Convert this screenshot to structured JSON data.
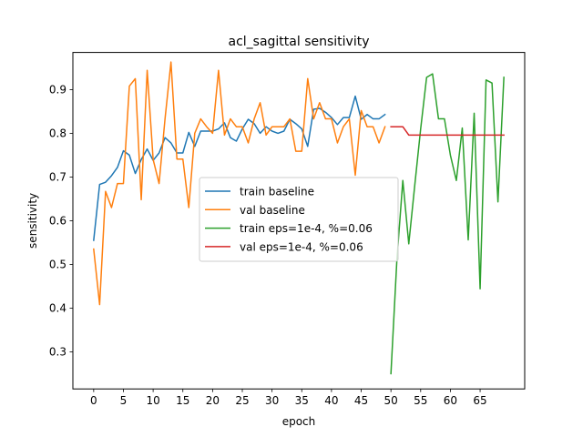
{
  "chart_data": {
    "type": "line",
    "title": "acl_sagittal sensitivity",
    "xlabel": "epoch",
    "ylabel": "sensitivity",
    "xlim": [
      -3.5,
      72.5
    ],
    "ylim": [
      0.215,
      0.985
    ],
    "xticks": [
      0,
      5,
      10,
      15,
      20,
      25,
      30,
      35,
      40,
      45,
      50,
      55,
      60,
      65
    ],
    "yticks": [
      0.3,
      0.4,
      0.5,
      0.6,
      0.7,
      0.8,
      0.9
    ],
    "ytick_labels": [
      "0.3",
      "0.4",
      "0.5",
      "0.6",
      "0.7",
      "0.8",
      "0.9"
    ],
    "grid": false,
    "legend_position": "center",
    "series": [
      {
        "name": "train baseline",
        "color": "#1f77b4",
        "x": [
          0,
          1,
          2,
          3,
          4,
          5,
          6,
          7,
          8,
          9,
          10,
          11,
          12,
          13,
          14,
          15,
          16,
          17,
          18,
          19,
          20,
          21,
          22,
          23,
          24,
          25,
          26,
          27,
          28,
          29,
          30,
          31,
          32,
          33,
          34,
          35,
          36,
          37,
          38,
          39,
          40,
          41,
          42,
          43,
          44,
          45,
          46,
          47,
          48,
          49
        ],
        "y": [
          0.555,
          0.683,
          0.688,
          0.703,
          0.722,
          0.76,
          0.75,
          0.708,
          0.74,
          0.764,
          0.738,
          0.755,
          0.79,
          0.778,
          0.755,
          0.755,
          0.802,
          0.77,
          0.805,
          0.805,
          0.805,
          0.81,
          0.824,
          0.79,
          0.782,
          0.81,
          0.832,
          0.822,
          0.8,
          0.815,
          0.805,
          0.8,
          0.805,
          0.832,
          0.822,
          0.81,
          0.77,
          0.855,
          0.857,
          0.848,
          0.836,
          0.82,
          0.836,
          0.836,
          0.885,
          0.832,
          0.843,
          0.833,
          0.833,
          0.843
        ]
      },
      {
        "name": "val baseline",
        "color": "#ff7f0e",
        "x": [
          0,
          1,
          2,
          3,
          4,
          5,
          6,
          7,
          8,
          9,
          10,
          11,
          12,
          13,
          14,
          15,
          16,
          17,
          18,
          19,
          20,
          21,
          22,
          23,
          24,
          25,
          26,
          27,
          28,
          29,
          30,
          31,
          32,
          33,
          34,
          35,
          36,
          37,
          38,
          39,
          40,
          41,
          42,
          43,
          44,
          45,
          46,
          47,
          48,
          49
        ],
        "y": [
          0.535,
          0.408,
          0.667,
          0.63,
          0.685,
          0.685,
          0.908,
          0.925,
          0.648,
          0.944,
          0.74,
          0.685,
          0.833,
          0.963,
          0.741,
          0.741,
          0.63,
          0.8,
          0.833,
          0.815,
          0.8,
          0.944,
          0.796,
          0.833,
          0.815,
          0.815,
          0.778,
          0.833,
          0.87,
          0.796,
          0.815,
          0.815,
          0.815,
          0.833,
          0.759,
          0.759,
          0.925,
          0.833,
          0.87,
          0.833,
          0.833,
          0.778,
          0.815,
          0.833,
          0.704,
          0.852,
          0.815,
          0.815,
          0.778,
          0.815
        ]
      },
      {
        "name": "train eps=1e-4, %=0.06",
        "color": "#2ca02c",
        "x": [
          50,
          51,
          52,
          53,
          54,
          55,
          56,
          57,
          58,
          59,
          60,
          61,
          62,
          63,
          64,
          65,
          66,
          67,
          68,
          69
        ],
        "y": [
          0.25,
          0.51,
          0.692,
          0.547,
          0.68,
          0.81,
          0.928,
          0.936,
          0.833,
          0.833,
          0.75,
          0.692,
          0.812,
          0.556,
          0.846,
          0.444,
          0.922,
          0.915,
          0.643,
          0.928
        ]
      },
      {
        "name": "val eps=1e-4, %=0.06",
        "color": "#d62728",
        "x": [
          50,
          51,
          52,
          53,
          54,
          55,
          56,
          57,
          58,
          59,
          60,
          61,
          62,
          63,
          64,
          65,
          66,
          67,
          68,
          69
        ],
        "y": [
          0.815,
          0.815,
          0.815,
          0.796,
          0.796,
          0.796,
          0.796,
          0.796,
          0.796,
          0.796,
          0.796,
          0.796,
          0.796,
          0.796,
          0.796,
          0.796,
          0.796,
          0.796,
          0.796,
          0.796
        ]
      }
    ]
  }
}
